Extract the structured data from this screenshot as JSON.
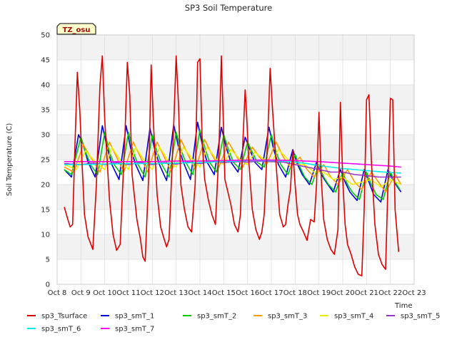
{
  "chart_data": {
    "type": "line",
    "title": "SP3 Soil Temperature",
    "xlabel": "Time",
    "ylabel": "Soil Temperature (C)",
    "ylim": [
      0,
      50
    ],
    "xlim": [
      8,
      23
    ],
    "yticks": [
      0,
      5,
      10,
      15,
      20,
      25,
      30,
      35,
      40,
      45,
      50
    ],
    "xticks": [
      8,
      9,
      10,
      11,
      12,
      13,
      14,
      15,
      16,
      17,
      18,
      19,
      20,
      21,
      22,
      23
    ],
    "xtick_labels": [
      "Oct 8",
      "Oct 9",
      "Oct 10",
      "Oct 11",
      "Oct 12",
      "Oct 13",
      "Oct 14",
      "Oct 15",
      "Oct 16",
      "Oct 17",
      "Oct 18",
      "Oct 19",
      "Oct 20",
      "Oct 21",
      "Oct 22",
      "Oct 23"
    ],
    "site_badge": "TZ_osu",
    "legend_position": "bottom",
    "series": [
      {
        "name": "sp3_Tsurface",
        "color": "#dd0000",
        "x": [
          8.3,
          8.45,
          8.55,
          8.65,
          8.75,
          8.85,
          8.95,
          9.05,
          9.15,
          9.3,
          9.5,
          9.65,
          9.8,
          9.9,
          10.0,
          10.2,
          10.35,
          10.5,
          10.65,
          10.85,
          10.95,
          11.05,
          11.15,
          11.35,
          11.5,
          11.6,
          11.7,
          11.85,
          11.95,
          12.05,
          12.2,
          12.35,
          12.5,
          12.6,
          12.7,
          12.9,
          13.0,
          13.1,
          13.2,
          13.35,
          13.5,
          13.65,
          13.8,
          13.9,
          14.0,
          14.1,
          14.2,
          14.35,
          14.5,
          14.65,
          14.8,
          14.9,
          15.0,
          15.05,
          15.15,
          15.3,
          15.45,
          15.6,
          15.7,
          15.8,
          15.9,
          15.95,
          16.05,
          16.2,
          16.35,
          16.5,
          16.6,
          16.7,
          16.85,
          16.95,
          17.05,
          17.2,
          17.35,
          17.5,
          17.6,
          17.7,
          17.8,
          17.9,
          18.0,
          18.1,
          18.2,
          18.35,
          18.5,
          18.65,
          18.8,
          18.9,
          19.0,
          19.1,
          19.2,
          19.35,
          19.5,
          19.65,
          19.8,
          19.9,
          20.0,
          20.1,
          20.2,
          20.35,
          20.5,
          20.65,
          20.8,
          20.9,
          21.0,
          21.1,
          21.2,
          21.35,
          21.5,
          21.65,
          21.8,
          21.9,
          22.0,
          22.1,
          22.2,
          22.35
        ],
        "y": [
          15.5,
          13.0,
          11.5,
          12.0,
          28.0,
          42.5,
          35.0,
          24.0,
          14.0,
          9.5,
          7.0,
          20.0,
          40.0,
          45.8,
          33.0,
          17.0,
          10.0,
          6.8,
          8.0,
          30.0,
          44.5,
          38.0,
          22.0,
          13.0,
          9.0,
          5.5,
          4.6,
          22.0,
          44.0,
          32.0,
          18.0,
          11.5,
          9.0,
          7.5,
          9.0,
          32.0,
          45.8,
          36.0,
          20.0,
          15.0,
          11.5,
          10.5,
          20.0,
          44.5,
          45.2,
          28.0,
          21.0,
          17.0,
          14.0,
          12.0,
          27.0,
          45.8,
          30.0,
          21.0,
          19.0,
          16.0,
          12.0,
          10.5,
          14.0,
          28.0,
          39.0,
          35.0,
          25.0,
          15.0,
          11.0,
          9.0,
          10.5,
          14.0,
          30.0,
          43.3,
          35.0,
          24.0,
          14.0,
          11.5,
          12.0,
          16.0,
          19.0,
          26.8,
          20.0,
          14.0,
          12.0,
          10.5,
          8.8,
          13.0,
          12.5,
          20.0,
          34.5,
          21.0,
          13.0,
          9.0,
          7.0,
          6.0,
          11.0,
          36.5,
          21.0,
          12.0,
          8.0,
          6.0,
          3.5,
          2.0,
          1.7,
          15.0,
          37.0,
          38.0,
          25.0,
          12.0,
          6.0,
          4.0,
          3.0,
          20.0,
          37.3,
          37.0,
          15.0,
          6.5
        ]
      },
      {
        "name": "sp3_smT_1",
        "color": "#0000dd",
        "x": [
          8.3,
          8.6,
          8.9,
          9.1,
          9.3,
          9.6,
          9.9,
          10.1,
          10.3,
          10.6,
          10.9,
          11.1,
          11.3,
          11.6,
          11.9,
          12.1,
          12.3,
          12.6,
          12.9,
          13.1,
          13.3,
          13.6,
          13.9,
          14.1,
          14.3,
          14.6,
          14.9,
          15.1,
          15.3,
          15.6,
          15.9,
          16.1,
          16.3,
          16.6,
          16.9,
          17.1,
          17.3,
          17.6,
          17.9,
          18.1,
          18.3,
          18.6,
          18.9,
          19.1,
          19.3,
          19.6,
          19.9,
          20.1,
          20.3,
          20.6,
          20.9,
          21.1,
          21.3,
          21.6,
          21.9,
          22.1,
          22.3,
          22.45
        ],
        "y": [
          23.0,
          21.5,
          30.0,
          28.0,
          24.5,
          21.5,
          31.8,
          27.5,
          24.0,
          21.0,
          31.8,
          27.0,
          24.0,
          20.8,
          31.3,
          27.0,
          24.0,
          20.8,
          32.0,
          27.5,
          24.5,
          21.0,
          32.5,
          28.0,
          24.5,
          22.0,
          31.5,
          27.5,
          24.5,
          22.5,
          29.5,
          27.0,
          24.5,
          23.0,
          31.5,
          27.0,
          24.0,
          21.5,
          27.0,
          24.0,
          22.0,
          20.0,
          24.5,
          22.0,
          20.5,
          18.5,
          23.0,
          20.5,
          18.5,
          16.8,
          23.0,
          20.5,
          18.0,
          16.5,
          23.0,
          21.0,
          19.5,
          18.5
        ]
      },
      {
        "name": "sp3_smT_2",
        "color": "#00cc00",
        "x": [
          8.3,
          8.6,
          9.0,
          9.2,
          9.4,
          9.7,
          10.0,
          10.2,
          10.4,
          10.7,
          11.0,
          11.2,
          11.4,
          11.7,
          12.0,
          12.2,
          12.4,
          12.7,
          13.0,
          13.2,
          13.4,
          13.7,
          14.0,
          14.2,
          14.4,
          14.7,
          15.0,
          15.2,
          15.4,
          15.7,
          16.0,
          16.2,
          16.4,
          16.7,
          17.0,
          17.2,
          17.4,
          17.7,
          18.0,
          18.2,
          18.4,
          18.7,
          19.0,
          19.2,
          19.4,
          19.7,
          20.0,
          20.2,
          20.4,
          20.7,
          21.0,
          21.2,
          21.4,
          21.7,
          22.0,
          22.2,
          22.4
        ],
        "y": [
          23.0,
          22.0,
          29.5,
          26.5,
          24.0,
          22.0,
          30.5,
          26.5,
          24.0,
          22.0,
          30.5,
          26.5,
          24.0,
          21.5,
          30.0,
          26.5,
          24.0,
          21.5,
          30.5,
          27.0,
          24.5,
          22.0,
          31.0,
          27.5,
          24.5,
          22.5,
          30.0,
          27.0,
          24.5,
          23.0,
          28.5,
          26.5,
          24.5,
          23.5,
          30.0,
          26.5,
          24.0,
          22.0,
          26.0,
          23.5,
          21.5,
          20.0,
          24.0,
          21.5,
          20.0,
          18.5,
          22.5,
          20.0,
          18.5,
          17.0,
          22.5,
          20.0,
          18.0,
          17.0,
          22.5,
          20.5,
          19.0
        ]
      },
      {
        "name": "sp3_smT_3",
        "color": "#ff9900",
        "x": [
          8.3,
          8.7,
          9.1,
          9.4,
          9.8,
          10.2,
          10.5,
          10.8,
          11.2,
          11.5,
          11.8,
          12.2,
          12.5,
          12.8,
          13.2,
          13.5,
          13.8,
          14.2,
          14.5,
          14.8,
          15.2,
          15.5,
          15.8,
          16.2,
          16.5,
          16.8,
          17.2,
          17.5,
          17.8,
          18.2,
          18.5,
          18.8,
          19.2,
          19.5,
          19.8,
          20.2,
          20.5,
          20.8,
          21.2,
          21.5,
          21.8,
          22.2,
          22.45
        ],
        "y": [
          23.5,
          22.5,
          28.0,
          25.5,
          22.5,
          28.5,
          25.5,
          22.5,
          28.5,
          25.5,
          22.5,
          28.5,
          25.5,
          22.5,
          29.0,
          26.0,
          23.0,
          29.0,
          26.0,
          23.5,
          28.5,
          26.0,
          23.5,
          27.5,
          25.5,
          24.0,
          28.5,
          25.5,
          23.5,
          25.5,
          23.0,
          21.5,
          24.0,
          21.5,
          20.0,
          23.0,
          20.5,
          19.0,
          22.5,
          20.5,
          18.5,
          22.0,
          20.0
        ]
      },
      {
        "name": "sp3_smT_4",
        "color": "#eeee00",
        "x": [
          8.3,
          8.8,
          9.2,
          9.6,
          10.0,
          10.3,
          10.7,
          11.0,
          11.3,
          11.7,
          12.0,
          12.3,
          12.7,
          13.0,
          13.3,
          13.7,
          14.0,
          14.3,
          14.7,
          15.0,
          15.3,
          15.7,
          16.0,
          16.3,
          16.7,
          17.0,
          17.3,
          17.7,
          18.0,
          18.4,
          18.8,
          19.2,
          19.6,
          20.0,
          20.4,
          20.8,
          21.2,
          21.6,
          22.0,
          22.45
        ],
        "y": [
          24.0,
          23.0,
          26.8,
          24.5,
          23.0,
          27.5,
          24.5,
          23.0,
          27.5,
          24.5,
          23.0,
          27.5,
          24.5,
          23.5,
          27.5,
          25.0,
          23.5,
          27.5,
          25.0,
          24.0,
          27.0,
          25.0,
          24.0,
          26.5,
          25.0,
          24.5,
          27.0,
          25.0,
          24.0,
          24.0,
          22.5,
          22.5,
          21.0,
          21.5,
          20.0,
          20.5,
          21.0,
          19.5,
          21.0,
          20.0
        ]
      },
      {
        "name": "sp3_smT_5",
        "color": "#9933cc",
        "x": [
          8.3,
          9.0,
          9.5,
          10.0,
          10.5,
          11.0,
          11.5,
          12.0,
          12.5,
          13.0,
          13.5,
          14.0,
          14.5,
          15.0,
          15.5,
          16.0,
          16.5,
          17.0,
          17.5,
          18.0,
          18.5,
          19.0,
          19.5,
          20.0,
          20.5,
          21.0,
          21.5,
          22.0,
          22.45
        ],
        "y": [
          24.2,
          24.0,
          24.3,
          24.0,
          24.4,
          24.0,
          24.4,
          24.0,
          24.4,
          24.1,
          24.5,
          24.2,
          24.6,
          24.4,
          24.6,
          24.5,
          24.7,
          24.6,
          24.5,
          24.0,
          23.5,
          23.0,
          22.5,
          22.5,
          22.0,
          21.8,
          21.5,
          21.5,
          21.5
        ]
      },
      {
        "name": "sp3_smT_6",
        "color": "#00eeee",
        "x": [
          8.3,
          9.0,
          10.0,
          11.0,
          12.0,
          13.0,
          14.0,
          15.0,
          16.0,
          17.0,
          17.5,
          18.0,
          18.5,
          19.0,
          19.5,
          20.0,
          20.5,
          21.0,
          21.5,
          22.0,
          22.45
        ],
        "y": [
          24.0,
          24.0,
          24.1,
          24.2,
          24.2,
          24.3,
          24.4,
          24.6,
          24.8,
          24.8,
          24.7,
          24.5,
          24.2,
          23.8,
          23.5,
          23.2,
          23.0,
          22.8,
          22.6,
          22.4,
          22.3
        ]
      },
      {
        "name": "sp3_smT_7",
        "color": "#ff00ff",
        "x": [
          8.3,
          9.0,
          10.0,
          11.0,
          12.0,
          13.0,
          14.0,
          15.0,
          16.0,
          17.0,
          18.0,
          19.0,
          20.0,
          21.0,
          22.0,
          22.45
        ],
        "y": [
          24.6,
          24.6,
          24.6,
          24.6,
          24.6,
          24.7,
          24.7,
          24.8,
          24.9,
          24.9,
          24.8,
          24.6,
          24.3,
          24.0,
          23.7,
          23.5
        ]
      }
    ]
  }
}
